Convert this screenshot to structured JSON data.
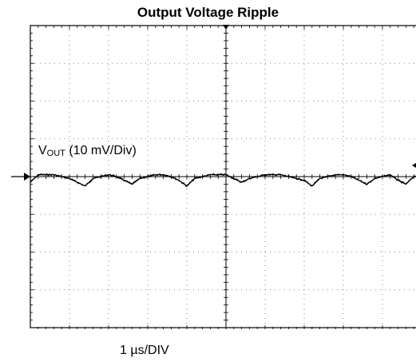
{
  "chart_data": {
    "type": "line",
    "title": "Output Voltage Ripple",
    "channel_label_main": "V",
    "channel_label_sub": "OUT",
    "channel_label_scale": " (10 mV/Div)",
    "x_scale_label": "1 µs/DIV",
    "grid": true,
    "divisions": {
      "x": 10,
      "y": 8
    },
    "x_unit": "µs",
    "y_unit": "mV",
    "xlim": [
      0,
      10
    ],
    "ylim": [
      -40,
      40
    ],
    "trace_color": "#000000",
    "series": [
      {
        "x": [
          0,
          0.2,
          0.4,
          0.6,
          0.8,
          1.0,
          1.2,
          1.4,
          1.6,
          1.8,
          2.0,
          2.2,
          2.4,
          2.6,
          2.8,
          3.0,
          3.2,
          3.4,
          3.6,
          3.8,
          4.0,
          4.2,
          4.4,
          4.6,
          4.8,
          5.0,
          5.2,
          5.4,
          5.6,
          5.8,
          6.0,
          6.2,
          6.4,
          6.6,
          6.8,
          7.0,
          7.2,
          7.4,
          7.6,
          7.8,
          8.0,
          8.2,
          8.4,
          8.6,
          8.8,
          9.0,
          9.2,
          9.4,
          9.6,
          9.8,
          10.0
        ],
        "y": [
          -1.5,
          0.5,
          0.5,
          0.5,
          0,
          -0.5,
          -1.5,
          -2.5,
          -0.5,
          0,
          0.5,
          0,
          -1,
          -2,
          -0.5,
          0,
          0.5,
          0.5,
          0,
          -1,
          -2.5,
          -0.5,
          0,
          0.5,
          0.5,
          0.5,
          -0.5,
          -1.5,
          -0.5,
          0,
          0.5,
          0.5,
          0.5,
          0,
          -0.5,
          -1,
          -2.5,
          -0.5,
          0,
          0.5,
          0.5,
          0,
          -1,
          -2,
          -0.5,
          0,
          0.5,
          -1,
          -2,
          0,
          0.5
        ]
      }
    ]
  }
}
